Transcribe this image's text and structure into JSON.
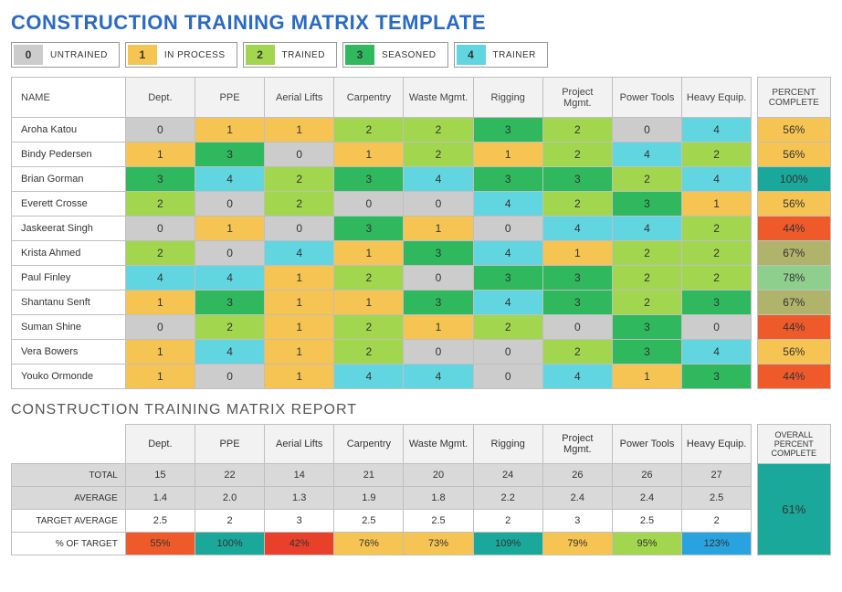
{
  "title": "CONSTRUCTION TRAINING MATRIX TEMPLATE",
  "subtitle": "CONSTRUCTION TRAINING MATRIX REPORT",
  "legend": [
    {
      "value": "0",
      "label": "UNTRAINED",
      "color": "#cccccc"
    },
    {
      "value": "1",
      "label": "IN PROCESS",
      "color": "#f6c452"
    },
    {
      "value": "2",
      "label": "TRAINED",
      "color": "#a3d64f"
    },
    {
      "value": "3",
      "label": "SEASONED",
      "color": "#2fb85e"
    },
    {
      "value": "4",
      "label": "TRAINER",
      "color": "#62d6e0"
    }
  ],
  "level_colors": {
    "0": "#cccccc",
    "1": "#f6c452",
    "2": "#a3d64f",
    "3": "#2fb85e",
    "4": "#62d6e0"
  },
  "columns": {
    "name": "NAME",
    "categories": [
      "Dept.",
      "PPE",
      "Aerial Lifts",
      "Carpentry",
      "Waste Mgmt.",
      "Rigging",
      "Project Mgmt.",
      "Power Tools",
      "Heavy Equip."
    ],
    "percent_complete": "PERCENT COMPLETE"
  },
  "employees": [
    {
      "name": "Aroha Katou",
      "scores": [
        0,
        1,
        1,
        2,
        2,
        3,
        2,
        0,
        4
      ],
      "pct": "56%",
      "pct_color": "#f6c452"
    },
    {
      "name": "Bindy Pedersen",
      "scores": [
        1,
        3,
        0,
        1,
        2,
        1,
        2,
        4,
        2
      ],
      "pct": "56%",
      "pct_color": "#f6c452"
    },
    {
      "name": "Brian Gorman",
      "scores": [
        3,
        4,
        2,
        3,
        4,
        3,
        3,
        2,
        4
      ],
      "pct": "100%",
      "pct_color": "#1aa89a"
    },
    {
      "name": "Everett Crosse",
      "scores": [
        2,
        0,
        2,
        0,
        0,
        4,
        2,
        3,
        1
      ],
      "pct": "56%",
      "pct_color": "#f6c452"
    },
    {
      "name": "Jaskeerat Singh",
      "scores": [
        0,
        1,
        0,
        3,
        1,
        0,
        4,
        4,
        2
      ],
      "pct": "44%",
      "pct_color": "#ef5a2b"
    },
    {
      "name": "Krista Ahmed",
      "scores": [
        2,
        0,
        4,
        1,
        3,
        4,
        1,
        2,
        2
      ],
      "pct": "67%",
      "pct_color": "#b0b36a"
    },
    {
      "name": "Paul Finley",
      "scores": [
        4,
        4,
        1,
        2,
        0,
        3,
        3,
        2,
        2
      ],
      "pct": "78%",
      "pct_color": "#8fcf8e"
    },
    {
      "name": "Shantanu Senft",
      "scores": [
        1,
        3,
        1,
        1,
        3,
        4,
        3,
        2,
        3
      ],
      "pct": "67%",
      "pct_color": "#b0b36a"
    },
    {
      "name": "Suman Shine",
      "scores": [
        0,
        2,
        1,
        2,
        1,
        2,
        0,
        3,
        0
      ],
      "pct": "44%",
      "pct_color": "#ef5a2b"
    },
    {
      "name": "Vera Bowers",
      "scores": [
        1,
        4,
        1,
        2,
        0,
        0,
        2,
        3,
        4
      ],
      "pct": "56%",
      "pct_color": "#f6c452"
    },
    {
      "name": "Youko Ormonde",
      "scores": [
        1,
        0,
        1,
        4,
        4,
        0,
        4,
        1,
        3
      ],
      "pct": "44%",
      "pct_color": "#ef5a2b"
    }
  ],
  "report": {
    "overall_label": "OVERALL PERCENT COMPLETE",
    "overall_pct": "61%",
    "overall_color": "#1aa89a",
    "rows": [
      {
        "label": "TOTAL",
        "values": [
          "15",
          "22",
          "14",
          "21",
          "20",
          "24",
          "26",
          "26",
          "27"
        ],
        "colors": null
      },
      {
        "label": "AVERAGE",
        "values": [
          "1.4",
          "2.0",
          "1.3",
          "1.9",
          "1.8",
          "2.2",
          "2.4",
          "2.4",
          "2.5"
        ],
        "colors": null
      },
      {
        "label": "TARGET AVERAGE",
        "values": [
          "2.5",
          "2",
          "3",
          "2.5",
          "2.5",
          "2",
          "3",
          "2.5",
          "2"
        ],
        "colors": null
      },
      {
        "label": "% OF TARGET",
        "values": [
          "55%",
          "100%",
          "42%",
          "76%",
          "73%",
          "109%",
          "79%",
          "95%",
          "123%"
        ],
        "colors": [
          "#ef5a2b",
          "#1aa89a",
          "#e8402a",
          "#f6c452",
          "#f6c452",
          "#1aa89a",
          "#f6c452",
          "#a3d64f",
          "#29a3e0"
        ]
      }
    ]
  },
  "style": {
    "header_bg": "#f2f2f2",
    "border_color": "#bfbfbf"
  }
}
